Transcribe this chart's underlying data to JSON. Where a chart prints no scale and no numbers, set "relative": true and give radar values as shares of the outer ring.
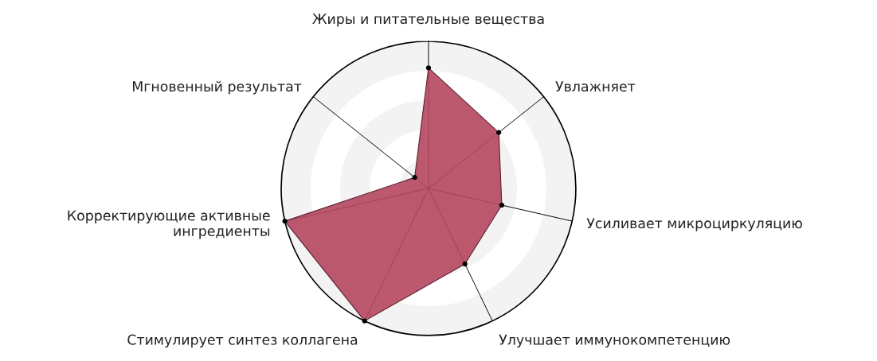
{
  "chart_data": {
    "type": "radar",
    "relative": true,
    "grid": true,
    "marker": "circle",
    "categories": [
      "Жиры и питательные вещества",
      "Увлажняет",
      "Усиливает микроциркуляцию",
      "Улучшает иммунокомпетенцию",
      "Стимулирует синтез коллагена",
      "Корректирующие активные\nингредиенты",
      "Мгновенный результат"
    ],
    "series": [
      {
        "color": "#b5475f",
        "values": [
          0.82,
          0.61,
          0.51,
          0.57,
          1.0,
          1.0,
          0.12
        ]
      }
    ]
  }
}
